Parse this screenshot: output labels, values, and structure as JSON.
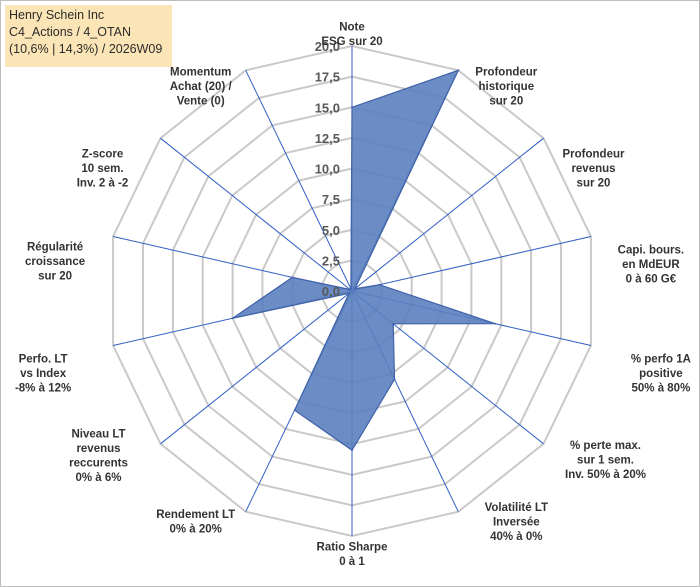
{
  "info": {
    "company": "Henry Schein Inc",
    "portfolio": "C4_Actions / 4_OTAN",
    "stats": "(10,6% | 14,3%) / 2026W09"
  },
  "colors": {
    "series_fill": "#5b7fbf",
    "series_stroke": "#3f62a8",
    "grid": "#c9c9c9",
    "spokes": "#2f5fc4",
    "info_bg": "#fbe5b6"
  },
  "chart_data": {
    "type": "radar",
    "title": "",
    "rmin": 0,
    "rmax": 20,
    "ticks": [
      "0,0",
      "2,5",
      "5,0",
      "7,5",
      "10,0",
      "12,5",
      "15,0",
      "17,5",
      "20,0"
    ],
    "tick_values": [
      0,
      2.5,
      5,
      7.5,
      10,
      12.5,
      15,
      17.5,
      20
    ],
    "axes": [
      {
        "lines": [
          "Note",
          "ESG sur 20"
        ]
      },
      {
        "lines": [
          "Profondeur",
          "historique",
          "sur 20"
        ]
      },
      {
        "lines": [
          "Profondeur",
          "revenus",
          "sur 20"
        ]
      },
      {
        "lines": [
          "Capi. bours.",
          "en MdEUR",
          "0 à 60 G€"
        ]
      },
      {
        "lines": [
          "% perfo 1A",
          "positive",
          "50% à 80%"
        ]
      },
      {
        "lines": [
          "% perte max.",
          "sur 1 sem.",
          "Inv. 50% à 20%"
        ]
      },
      {
        "lines": [
          "Volatilité LT",
          "Inversée",
          "40% à 0%"
        ]
      },
      {
        "lines": [
          "Ratio Sharpe",
          "0 à 1"
        ]
      },
      {
        "lines": [
          "Rendement LT",
          "0% à 20%"
        ]
      },
      {
        "lines": [
          "Niveau LT",
          "revenus",
          "reccurents",
          "0% à 6%"
        ]
      },
      {
        "lines": [
          "Perfo. LT",
          "vs Index",
          "-8% à 12%"
        ]
      },
      {
        "lines": [
          "Régularité",
          "croissance",
          "sur 20"
        ]
      },
      {
        "lines": [
          "Z-score",
          "10 sem.",
          "Inv. 2 à -2"
        ]
      },
      {
        "lines": [
          "Momentum",
          "Achat (20) /",
          "Vente (0)"
        ]
      }
    ],
    "series": [
      {
        "name": "Henry Schein Inc",
        "values": [
          15,
          20,
          0.3,
          2.3,
          12,
          4.3,
          8,
          13,
          10.8,
          0.3,
          10,
          5,
          0.2,
          0.2
        ]
      }
    ]
  }
}
